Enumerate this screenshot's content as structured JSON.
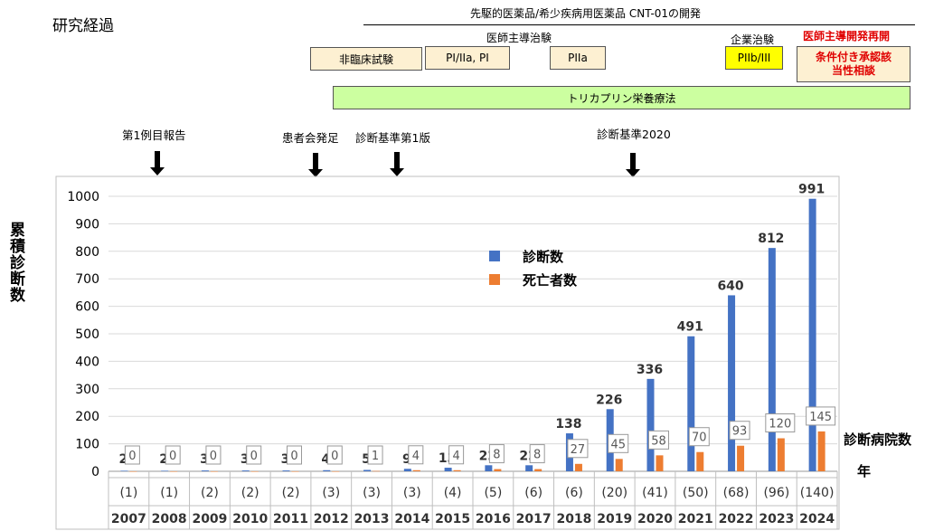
{
  "page": {
    "title": "研究経過",
    "header_line": "先駆的医薬品/希少疾病用医薬品 CNT-01の開発",
    "group_ishi": "医師主導治験",
    "group_kigyo": "企業治験",
    "group_restart": "医師主導開発再開",
    "phases": {
      "nonclinical": "非臨床試験",
      "p1": "PI/IIa, PI",
      "p2a": "PIIa",
      "p2b3": "PIIb/III",
      "conditional": "条件付き承認該当性相談"
    },
    "therapy": "トリカプリン栄養療法",
    "milestones": {
      "m1": "第1例目報告",
      "m2": "患者会発足",
      "m3": "診断基準第1版",
      "m4": "診断基準2020"
    },
    "y_axis_label": "累積診断数",
    "hosp_label": "診断病院数",
    "year_label": "年"
  },
  "colors": {
    "diagnosed": "#4472c4",
    "deaths": "#ed7d31",
    "therapy_bar": "#ccffa0",
    "phase_box": "#fdf0d2",
    "highlight": "#ffff00",
    "alert_text": "#e00000"
  },
  "chart_data": {
    "type": "bar",
    "categories": [
      "2007",
      "2008",
      "2009",
      "2010",
      "2011",
      "2012",
      "2013",
      "2014",
      "2015",
      "2016",
      "2017",
      "2018",
      "2019",
      "2020",
      "2021",
      "2022",
      "2023",
      "2024"
    ],
    "hospitals": [
      "(1)",
      "(1)",
      "(2)",
      "(2)",
      "(2)",
      "(3)",
      "(3)",
      "(3)",
      "(4)",
      "(5)",
      "(6)",
      "(6)",
      "(20)",
      "(41)",
      "(50)",
      "(68)",
      "(96)",
      "(140)"
    ],
    "series": [
      {
        "name": "診断数",
        "values": [
          2,
          2,
          3,
          3,
          3,
          4,
          5,
          9,
          13,
          22,
          22,
          138,
          226,
          336,
          491,
          640,
          812,
          991
        ],
        "labels": [
          "2",
          "2",
          "3",
          "3",
          "3",
          "4",
          "5",
          "9",
          "13",
          "22",
          "22",
          "138",
          "226",
          "336",
          "491",
          "640",
          "812",
          "991"
        ]
      },
      {
        "name": "死亡者数",
        "values": [
          0,
          0,
          0,
          0,
          0,
          0,
          1,
          4,
          4,
          8,
          8,
          27,
          45,
          58,
          70,
          93,
          120,
          145
        ]
      }
    ],
    "ylim": [
      0,
      1000
    ],
    "yticks": [
      0,
      100,
      200,
      300,
      400,
      500,
      600,
      700,
      800,
      900,
      1000
    ],
    "legend": "upper-center"
  }
}
